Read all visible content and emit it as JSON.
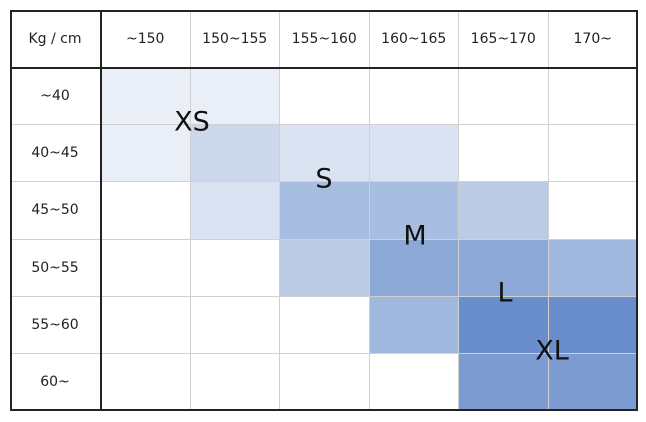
{
  "header": {
    "corner": "Kg / cm",
    "columns": [
      "~150",
      "150~155",
      "155~160",
      "160~165",
      "165~170",
      "170~"
    ]
  },
  "rows": [
    "~40",
    "40~45",
    "45~50",
    "50~55",
    "55~60",
    "60~"
  ],
  "sizes": [
    "XS",
    "S",
    "M",
    "L",
    "XL"
  ]
}
